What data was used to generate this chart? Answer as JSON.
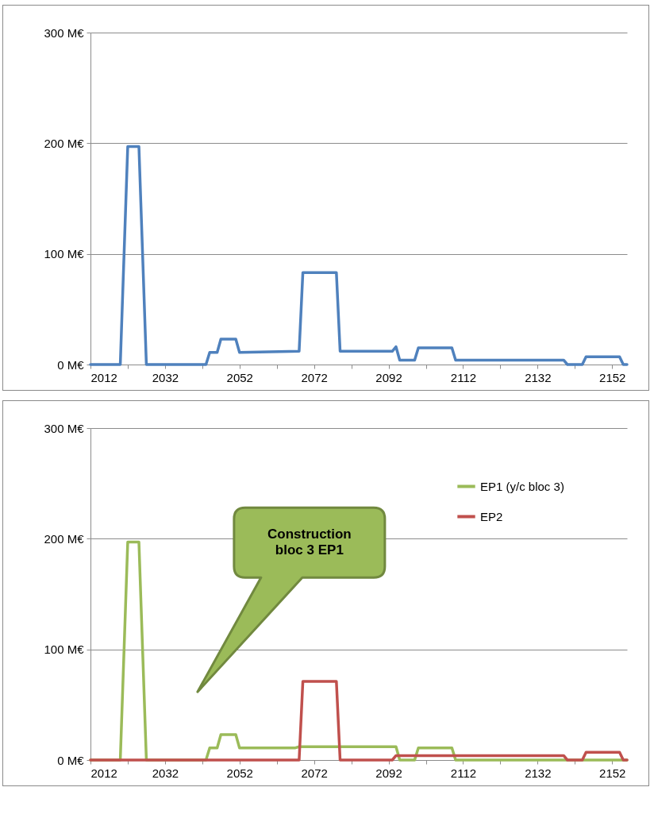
{
  "chart_data": [
    {
      "type": "line",
      "xlim": [
        2012,
        2156
      ],
      "ylim": [
        0,
        300
      ],
      "grid": "y",
      "line_style": "solid",
      "marker": "none",
      "xticks": [
        2012,
        {
          "value": 2022,
          "label": null
        },
        2032,
        {
          "value": 2042,
          "label": null
        },
        2052,
        {
          "value": 2062,
          "label": null
        },
        2072,
        {
          "value": 2082,
          "label": null
        },
        2092,
        {
          "value": 2102,
          "label": null
        },
        2112,
        {
          "value": 2122,
          "label": null
        },
        2132,
        {
          "value": 2142,
          "label": null
        },
        2152
      ],
      "yticks": [
        {
          "value": 0,
          "label": "0 M€"
        },
        {
          "value": 100,
          "label": "100 M€"
        },
        {
          "value": 200,
          "label": "200 M€"
        },
        {
          "value": 300,
          "label": "300 M€"
        }
      ],
      "series": [
        {
          "color": "#4f81bd",
          "x": [
            2012,
            2020,
            2022,
            2025,
            2027,
            2043,
            2044,
            2046,
            2047,
            2051,
            2052,
            2068,
            2069,
            2078,
            2079,
            2093,
            2094,
            2095,
            2099,
            2100,
            2109,
            2110,
            2139,
            2140,
            2144,
            2145,
            2154,
            2155,
            2156
          ],
          "values": [
            0,
            0,
            197,
            197,
            0,
            0,
            11,
            11,
            23,
            23,
            11,
            12,
            83,
            83,
            12,
            12,
            16,
            4,
            4,
            15,
            15,
            4,
            4,
            0,
            0,
            7,
            7,
            0,
            0
          ]
        }
      ]
    },
    {
      "type": "line",
      "xlim": [
        2012,
        2156
      ],
      "ylim": [
        0,
        300
      ],
      "grid": "y",
      "legend": "top right",
      "line_style": "solid",
      "marker": "none",
      "xticks": [
        2012,
        {
          "value": 2022,
          "label": null
        },
        2032,
        {
          "value": 2042,
          "label": null
        },
        2052,
        {
          "value": 2062,
          "label": null
        },
        2072,
        {
          "value": 2082,
          "label": null
        },
        2092,
        {
          "value": 2102,
          "label": null
        },
        2112,
        {
          "value": 2122,
          "label": null
        },
        2132,
        {
          "value": 2142,
          "label": null
        },
        2152
      ],
      "yticks": [
        {
          "value": 0,
          "label": "0 M€"
        },
        {
          "value": 100,
          "label": "100 M€"
        },
        {
          "value": 200,
          "label": "200 M€"
        },
        {
          "value": 300,
          "label": "300 M€"
        }
      ],
      "annotations": [
        "Construction bloc 3 EP1"
      ],
      "series": [
        {
          "name": "EP1 (y/c bloc 3)",
          "color": "#9bbb59",
          "x": [
            2012,
            2020,
            2022,
            2025,
            2027,
            2043,
            2044,
            2046,
            2047,
            2051,
            2052,
            2067,
            2068,
            2094,
            2095,
            2099,
            2100,
            2109,
            2110,
            2156
          ],
          "values": [
            0,
            0,
            197,
            197,
            0,
            0,
            11,
            11,
            23,
            23,
            11,
            11,
            12,
            12,
            0,
            0,
            11,
            11,
            0,
            0
          ]
        },
        {
          "name": "EP2",
          "color": "#c0504d",
          "x": [
            2012,
            2068,
            2069,
            2078,
            2079,
            2093,
            2094,
            2139,
            2140,
            2144,
            2145,
            2154,
            2155,
            2156
          ],
          "values": [
            0,
            0,
            71,
            71,
            0,
            0,
            4,
            4,
            0,
            0,
            7,
            7,
            0,
            0
          ]
        }
      ]
    }
  ]
}
